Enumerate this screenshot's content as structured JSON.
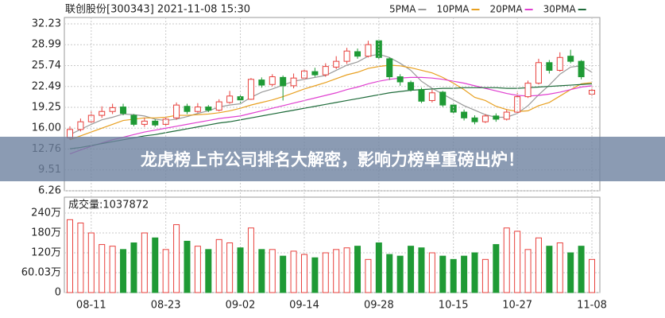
{
  "chart_data": [
    {
      "type": "candlestick",
      "title": "联创股份[300343] 2021-11-08 15:30",
      "open": [
        14.5,
        15.8,
        17.0,
        18.0,
        18.6,
        19.3,
        18.0,
        16.6,
        17.1,
        16.6,
        17.6,
        19.4,
        18.6,
        19.3,
        18.8,
        20.0,
        20.9,
        20.5,
        23.5,
        22.8,
        23.9,
        22.6,
        23.8,
        24.8,
        24.3,
        25.5,
        26.4,
        27.9,
        27.2,
        29.6,
        26.8,
        24.0,
        23.1,
        22.0,
        20.3,
        21.6,
        19.6,
        18.5,
        17.6,
        17.0,
        17.9,
        17.4,
        18.5,
        20.9,
        23.0,
        26.2,
        25.0,
        27.2,
        26.4,
        21.3
      ],
      "high": [
        16.3,
        17.5,
        18.6,
        19.4,
        19.8,
        19.8,
        18.2,
        17.6,
        17.4,
        17.8,
        20.0,
        19.8,
        19.9,
        19.6,
        20.5,
        21.8,
        21.3,
        23.8,
        23.9,
        24.4,
        24.2,
        24.5,
        25.3,
        25.4,
        26.1,
        27.2,
        28.5,
        28.4,
        29.6,
        29.8,
        27.0,
        24.4,
        23.4,
        22.3,
        22.0,
        21.8,
        19.9,
        18.9,
        18.0,
        18.2,
        18.3,
        18.9,
        21.5,
        23.4,
        26.8,
        26.6,
        27.8,
        28.2,
        26.6,
        22.4
      ],
      "low": [
        14.2,
        15.5,
        16.8,
        17.6,
        18.2,
        18.0,
        16.3,
        16.2,
        16.2,
        16.4,
        17.3,
        18.2,
        18.4,
        18.5,
        18.6,
        19.8,
        19.9,
        20.4,
        22.3,
        22.5,
        20.3,
        22.2,
        23.5,
        24.0,
        24.0,
        25.2,
        26.0,
        26.8,
        27.0,
        26.7,
        23.5,
        22.6,
        21.7,
        19.9,
        20.0,
        19.3,
        18.2,
        17.2,
        16.6,
        16.8,
        17.0,
        17.2,
        18.3,
        20.7,
        22.8,
        24.5,
        24.8,
        26.1,
        23.6,
        21.0
      ],
      "close": [
        15.8,
        17.0,
        18.0,
        18.6,
        19.2,
        18.3,
        16.6,
        17.1,
        16.5,
        17.4,
        19.6,
        18.6,
        19.3,
        18.8,
        20.1,
        21.0,
        20.4,
        23.6,
        22.7,
        24.0,
        22.6,
        23.8,
        24.9,
        24.3,
        25.6,
        26.4,
        28.0,
        27.2,
        29.0,
        27.0,
        24.0,
        23.2,
        22.0,
        20.2,
        21.5,
        19.6,
        18.5,
        17.6,
        17.0,
        17.9,
        17.4,
        18.5,
        20.9,
        23.0,
        26.2,
        25.0,
        27.0,
        26.4,
        24.0,
        21.9
      ],
      "up_color": "#e8403c",
      "down_color": "#1f9a35",
      "series": [
        {
          "name": "5PMA",
          "color": "#9a9a9a",
          "values": [
            15.0,
            15.8,
            16.6,
            17.3,
            17.7,
            18.2,
            18.1,
            17.9,
            17.4,
            17.2,
            17.4,
            17.8,
            18.3,
            18.7,
            19.3,
            19.6,
            19.8,
            20.8,
            21.6,
            22.1,
            22.7,
            23.3,
            23.6,
            23.9,
            24.2,
            25.0,
            25.8,
            26.3,
            27.2,
            27.5,
            27.0,
            26.1,
            25.0,
            23.3,
            22.2,
            21.3,
            20.4,
            19.5,
            18.8,
            18.1,
            17.7,
            17.7,
            18.3,
            19.5,
            21.2,
            22.7,
            24.4,
            25.5,
            25.7,
            24.7
          ]
        },
        {
          "name": "10PMA",
          "color": "#e8a020",
          "values": [
            14.2,
            14.8,
            15.4,
            16.0,
            16.6,
            17.2,
            17.4,
            17.6,
            17.6,
            17.7,
            18.0,
            18.0,
            18.1,
            18.2,
            18.4,
            18.7,
            19.1,
            19.6,
            20.0,
            20.4,
            20.9,
            21.5,
            22.1,
            22.6,
            23.1,
            23.7,
            24.3,
            24.7,
            25.3,
            25.6,
            25.8,
            25.7,
            25.4,
            25.0,
            24.6,
            23.9,
            23.0,
            22.0,
            20.8,
            20.3,
            19.4,
            18.9,
            18.6,
            18.7,
            19.5,
            20.0,
            21.0,
            22.0,
            22.9,
            23.1
          ]
        },
        {
          "name": "20PMA",
          "color": "#e040d0",
          "values": [
            12.0,
            12.6,
            13.2,
            13.7,
            14.2,
            14.6,
            15.0,
            15.4,
            15.7,
            16.0,
            16.3,
            16.6,
            16.9,
            17.2,
            17.5,
            17.7,
            17.9,
            18.3,
            18.7,
            19.1,
            19.5,
            19.9,
            20.3,
            20.7,
            21.1,
            21.5,
            22.0,
            22.4,
            22.9,
            23.3,
            23.6,
            23.8,
            23.9,
            23.9,
            23.8,
            23.6,
            23.3,
            23.0,
            22.6,
            22.2,
            21.8,
            21.4,
            21.1,
            21.0,
            21.1,
            21.3,
            21.6,
            22.0,
            22.4,
            22.6
          ]
        },
        {
          "name": "30PMA",
          "color": "#1e6b3a",
          "values": [
            12.8,
            13.0,
            13.3,
            13.6,
            13.9,
            14.2,
            14.5,
            14.8,
            15.0,
            15.3,
            15.6,
            15.9,
            16.2,
            16.5,
            16.8,
            17.0,
            17.3,
            17.6,
            17.9,
            18.2,
            18.5,
            18.8,
            19.1,
            19.4,
            19.7,
            20.0,
            20.3,
            20.6,
            20.9,
            21.2,
            21.5,
            21.7,
            21.9,
            22.0,
            22.1,
            22.2,
            22.2,
            22.3,
            22.3,
            22.3,
            22.3,
            22.2,
            22.2,
            22.3,
            22.4,
            22.5,
            22.6,
            22.7,
            22.8,
            22.9
          ]
        }
      ],
      "ylim": [
        6.26,
        32.23
      ],
      "yticks": [
        32.23,
        28.99,
        25.74,
        22.49,
        19.25,
        {
          "value": 16,
          "label": "16.00"
        },
        12.76,
        9.51,
        6.26
      ],
      "grid": true
    },
    {
      "type": "bar",
      "title": "成交量:1037872",
      "categories": [
        null,
        null,
        "08-11",
        null,
        null,
        null,
        null,
        null,
        null,
        "08-23",
        null,
        null,
        null,
        null,
        null,
        null,
        "09-02",
        null,
        null,
        null,
        null,
        null,
        "09-14",
        null,
        null,
        null,
        null,
        null,
        null,
        "09-28",
        null,
        null,
        null,
        null,
        null,
        null,
        "10-15",
        null,
        null,
        null,
        null,
        null,
        "10-27",
        null,
        null,
        null,
        null,
        null,
        null,
        "11-08"
      ],
      "values": [
        220,
        210,
        180,
        145,
        140,
        130,
        150,
        180,
        165,
        130,
        205,
        155,
        140,
        130,
        160,
        150,
        135,
        195,
        130,
        130,
        110,
        125,
        115,
        105,
        120,
        130,
        135,
        140,
        100,
        150,
        115,
        110,
        140,
        135,
        120,
        110,
        100,
        110,
        120,
        100,
        145,
        195,
        185,
        130,
        165,
        140,
        150,
        120,
        140,
        100
      ],
      "ylim": [
        0,
        240
      ],
      "yticks": [
        0,
        {
          "value": 60.03,
          "label": "60.03万"
        },
        {
          "value": 120,
          "label": "120万"
        },
        {
          "value": 180,
          "label": "180万"
        },
        {
          "value": 240,
          "label": "240万"
        }
      ],
      "grid": true
    }
  ],
  "banner": {
    "text": "龙虎榜上市公司排名大解密，影响力榜单重磅出炉！"
  }
}
